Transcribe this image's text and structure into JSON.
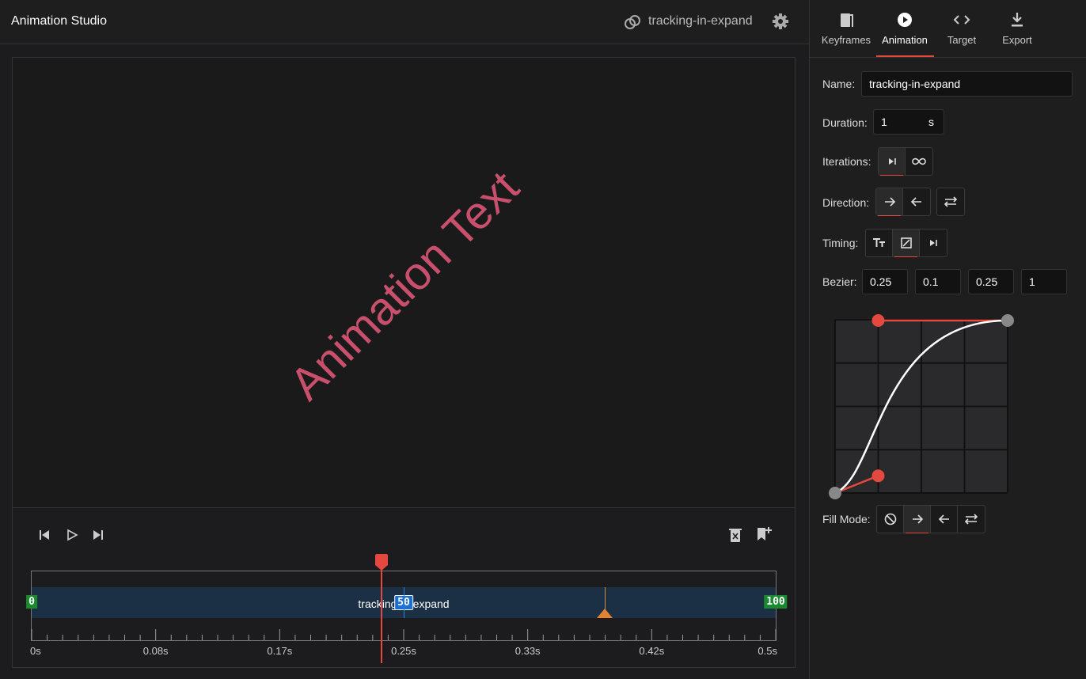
{
  "header": {
    "title": "Animation Studio",
    "animation_name": "tracking-in-expand"
  },
  "preview": {
    "text": "Animation Text"
  },
  "timeline": {
    "track_label": "tracking-in-expand",
    "keyframes": [
      0,
      50,
      100
    ],
    "time_labels": [
      "0s",
      "0.08s",
      "0.17s",
      "0.25s",
      "0.33s",
      "0.42s",
      "0.5s"
    ]
  },
  "panel": {
    "tabs": [
      "Keyframes",
      "Animation",
      "Target",
      "Export"
    ],
    "name_label": "Name:",
    "name": "tracking-in-expand",
    "duration_label": "Duration:",
    "duration": 1,
    "duration_unit": "s",
    "iterations_label": "Iterations:",
    "direction_label": "Direction:",
    "timing_label": "Timing:",
    "bezier_label": "Bezier:",
    "bezier": [
      0.25,
      0.1,
      0.25,
      1
    ],
    "fill_mode_label": "Fill Mode:"
  }
}
